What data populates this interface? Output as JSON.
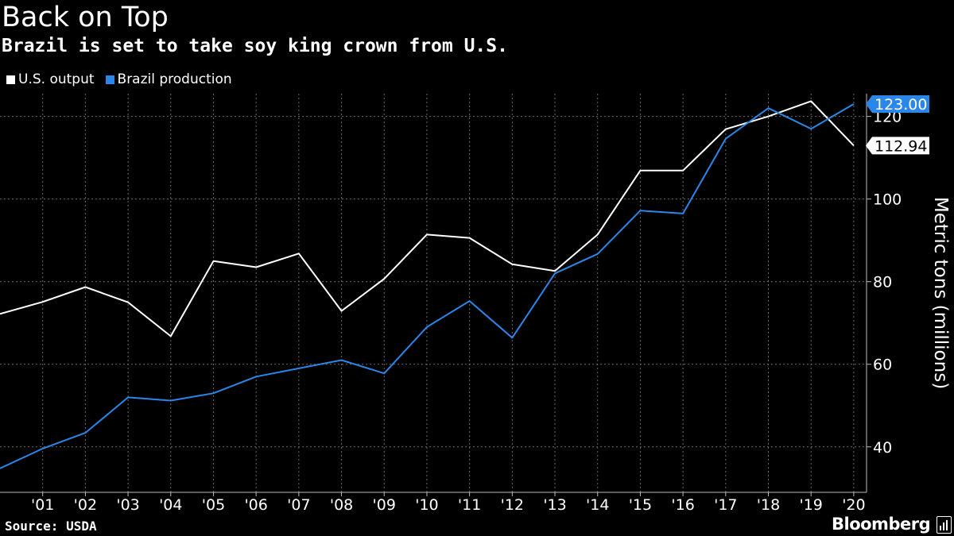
{
  "header": {
    "title": "Back on Top",
    "subtitle": "Brazil is set to take soy king crown from U.S."
  },
  "legend": [
    {
      "label": "U.S. output",
      "color": "#ffffff"
    },
    {
      "label": "Brazil production",
      "color": "#2a86e8"
    }
  ],
  "footer": {
    "source": "Source: USDA",
    "brand": "Bloomberg"
  },
  "chart_data": {
    "type": "line",
    "title": "Back on Top",
    "subtitle": "Brazil is set to take soy king crown from U.S.",
    "xlabel": "",
    "ylabel": "Metric tons (millions)",
    "x": [
      2000,
      2001,
      2002,
      2003,
      2004,
      2005,
      2006,
      2007,
      2008,
      2009,
      2010,
      2011,
      2012,
      2013,
      2014,
      2015,
      2016,
      2017,
      2018,
      2019,
      2020
    ],
    "x_tick_labels": [
      "'01",
      "'02",
      "'03",
      "'04",
      "'05",
      "'06",
      "'07",
      "'08",
      "'09",
      "'10",
      "'11",
      "'12",
      "'13",
      "'14",
      "'15",
      "'16",
      "'17",
      "'18",
      "'19",
      "'20"
    ],
    "x_tick_values": [
      2001,
      2002,
      2003,
      2004,
      2005,
      2006,
      2007,
      2008,
      2009,
      2010,
      2011,
      2012,
      2013,
      2014,
      2015,
      2016,
      2017,
      2018,
      2019,
      2020
    ],
    "xlim": [
      2000,
      2020.3
    ],
    "ylim": [
      29,
      125.5
    ],
    "y_ticks": [
      40,
      60,
      80,
      100,
      120
    ],
    "grid": true,
    "series": [
      {
        "name": "U.S. output",
        "color": "#ffffff",
        "values": [
          72.2,
          75.1,
          78.7,
          75.0,
          66.8,
          85.0,
          83.5,
          86.8,
          72.9,
          80.7,
          91.4,
          90.6,
          84.2,
          82.6,
          91.4,
          106.9,
          106.9,
          116.9,
          120.0,
          123.7,
          112.94
        ]
      },
      {
        "name": "Brazil production",
        "color": "#2a86e8",
        "values": [
          34.8,
          39.6,
          43.4,
          52.0,
          51.2,
          53.0,
          57.0,
          59.0,
          61.0,
          57.8,
          69.0,
          75.3,
          66.4,
          82.0,
          86.7,
          97.2,
          96.5,
          114.6,
          122.0,
          117.0,
          123.0
        ]
      }
    ],
    "end_labels": [
      {
        "series": "Brazil production",
        "text": "123.00",
        "value": 123.0
      },
      {
        "series": "U.S. output",
        "text": "112.94",
        "value": 112.94
      }
    ]
  }
}
